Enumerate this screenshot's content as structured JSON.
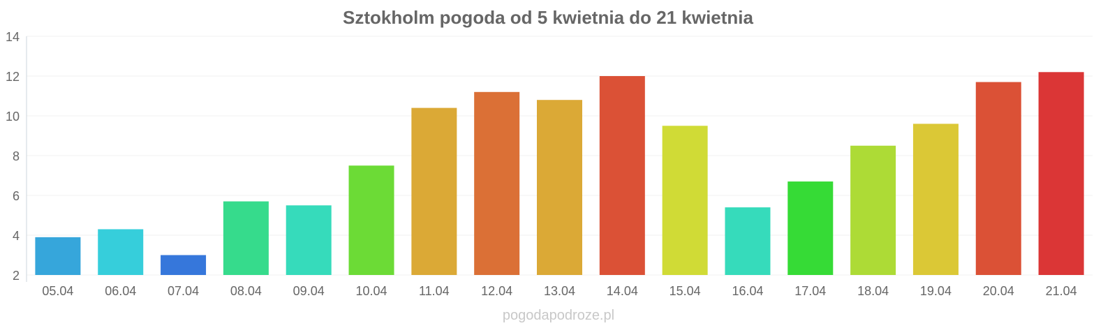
{
  "chart_data": {
    "type": "bar",
    "title": "Sztokholm pogoda od 5 kwietnia do 21 kwietnia",
    "xlabel": "",
    "ylabel": "",
    "ylim": [
      2,
      14
    ],
    "yticks": [
      2,
      4,
      6,
      8,
      10,
      12,
      14
    ],
    "grid": true,
    "categories": [
      "05.04",
      "06.04",
      "07.04",
      "08.04",
      "09.04",
      "10.04",
      "11.04",
      "12.04",
      "13.04",
      "14.04",
      "15.04",
      "16.04",
      "17.04",
      "18.04",
      "19.04",
      "20.04",
      "21.04"
    ],
    "values": [
      3.9,
      4.3,
      3.0,
      5.7,
      5.5,
      7.5,
      10.4,
      11.2,
      10.8,
      12.0,
      9.5,
      5.4,
      6.7,
      8.5,
      9.6,
      11.7,
      12.2
    ],
    "colors": [
      "#36a6db",
      "#36cedb",
      "#3677db",
      "#36db8c",
      "#36dbbb",
      "#6cdb36",
      "#dba936",
      "#db7036",
      "#dba936",
      "#db5136",
      "#d0db36",
      "#36dbbb",
      "#36db36",
      "#addb36",
      "#dbc836",
      "#db5136",
      "#db3636"
    ]
  },
  "footer": {
    "credit": "pogodapodroze.pl"
  }
}
